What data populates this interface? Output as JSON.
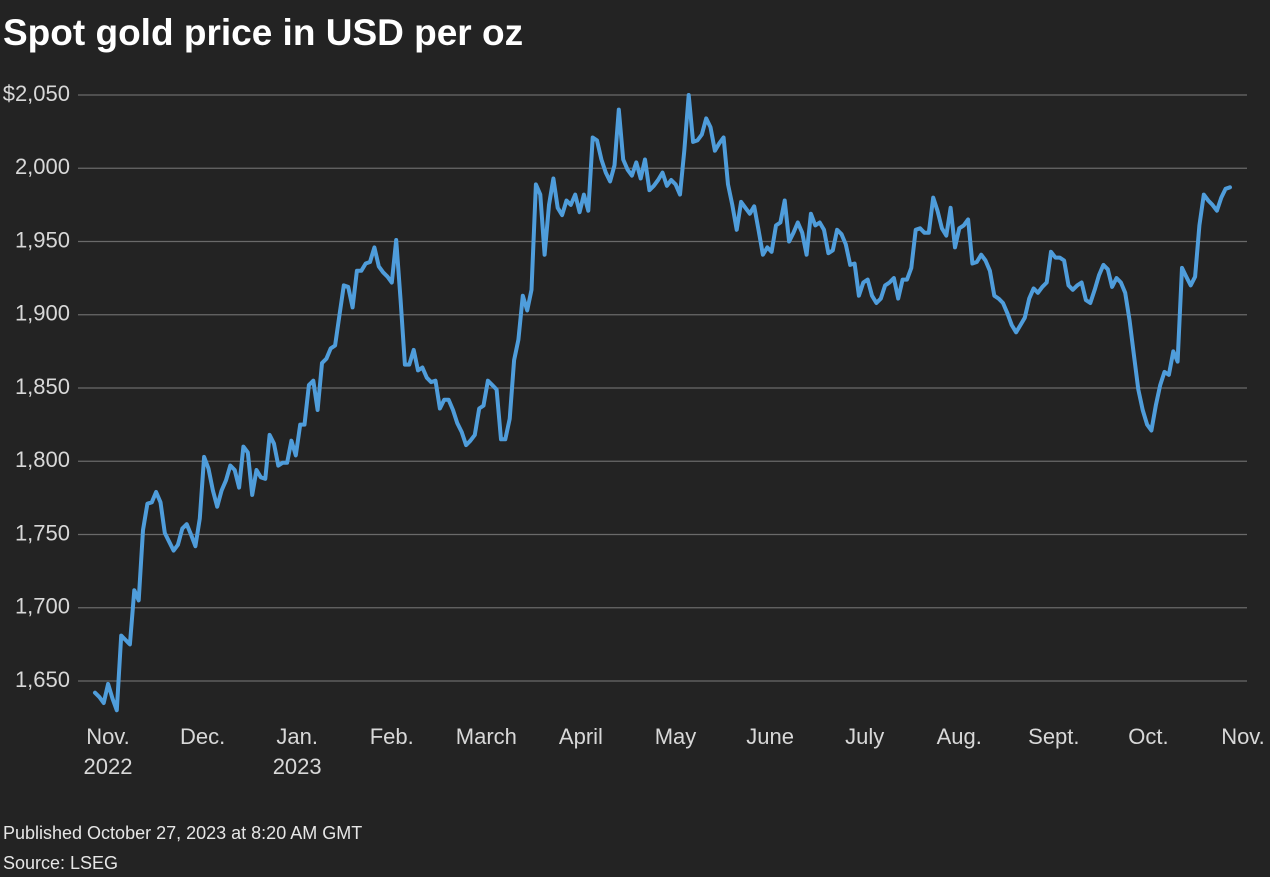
{
  "chart_data": {
    "type": "line",
    "title": "Spot gold price in USD per oz",
    "published": "Published October 27, 2023 at 8:20 AM GMT",
    "source": "Source: LSEG",
    "xticks": [
      {
        "label": "Nov.",
        "year": "2022"
      },
      {
        "label": "Dec."
      },
      {
        "label": "Jan.",
        "year": "2023"
      },
      {
        "label": "Feb."
      },
      {
        "label": "March"
      },
      {
        "label": "April"
      },
      {
        "label": "May"
      },
      {
        "label": "June"
      },
      {
        "label": "July"
      },
      {
        "label": "Aug."
      },
      {
        "label": "Sept."
      },
      {
        "label": "Oct."
      },
      {
        "label": "Nov."
      }
    ],
    "ylim": [
      1620,
      2055
    ],
    "yticks": [
      {
        "value": 1650,
        "label": "1,650"
      },
      {
        "value": 1700,
        "label": "1,700"
      },
      {
        "value": 1750,
        "label": "1,750"
      },
      {
        "value": 1800,
        "label": "1,800"
      },
      {
        "value": 1850,
        "label": "1,850"
      },
      {
        "value": 1900,
        "label": "1,900"
      },
      {
        "value": 1950,
        "label": "1,950"
      },
      {
        "value": 2000,
        "label": "2,000"
      },
      {
        "value": 2050,
        "label": "$2,050"
      }
    ],
    "grid": true,
    "series": [
      {
        "name": "Spot gold",
        "color": "#4f9ddb",
        "values": [
          1642,
          1639,
          1635,
          1648,
          1638,
          1630,
          1681,
          1678,
          1675,
          1712,
          1705,
          1753,
          1771,
          1772,
          1779,
          1772,
          1751,
          1745,
          1739,
          1743,
          1754,
          1757,
          1750,
          1742,
          1761,
          1803,
          1795,
          1780,
          1769,
          1780,
          1787,
          1797,
          1794,
          1782,
          1810,
          1806,
          1777,
          1794,
          1789,
          1788,
          1818,
          1812,
          1797,
          1799,
          1799,
          1814,
          1804,
          1825,
          1825,
          1852,
          1855,
          1835,
          1867,
          1870,
          1877,
          1879,
          1900,
          1920,
          1919,
          1905,
          1930,
          1930,
          1935,
          1936,
          1946,
          1933,
          1929,
          1926,
          1922,
          1951,
          1910,
          1866,
          1866,
          1876,
          1862,
          1864,
          1857,
          1854,
          1855,
          1836,
          1842,
          1842,
          1835,
          1826,
          1820,
          1811,
          1814,
          1818,
          1836,
          1838,
          1855,
          1852,
          1849,
          1815,
          1815,
          1829,
          1869,
          1883,
          1913,
          1903,
          1917,
          1989,
          1982,
          1941,
          1975,
          1993,
          1973,
          1968,
          1978,
          1975,
          1982,
          1970,
          1982,
          1971,
          2021,
          2019,
          2006,
          1997,
          1991,
          2002,
          2040,
          2006,
          1999,
          1995,
          2004,
          1993,
          2006,
          1985,
          1988,
          1992,
          1997,
          1988,
          1992,
          1989,
          1982,
          2012,
          2050,
          2018,
          2019,
          2023,
          2034,
          2028,
          2012,
          2017,
          2021,
          1989,
          1975,
          1958,
          1977,
          1973,
          1969,
          1974,
          1958,
          1941,
          1946,
          1943,
          1961,
          1963,
          1978,
          1950,
          1956,
          1963,
          1956,
          1941,
          1969,
          1961,
          1963,
          1958,
          1942,
          1944,
          1958,
          1955,
          1948,
          1934,
          1935,
          1913,
          1922,
          1924,
          1913,
          1908,
          1911,
          1920,
          1922,
          1925,
          1911,
          1924,
          1924,
          1932,
          1958,
          1959,
          1956,
          1956,
          1980,
          1971,
          1959,
          1954,
          1973,
          1946,
          1959,
          1961,
          1965,
          1935,
          1936,
          1941,
          1937,
          1930,
          1913,
          1911,
          1908,
          1901,
          1893,
          1888,
          1893,
          1898,
          1911,
          1918,
          1915,
          1919,
          1922,
          1943,
          1939,
          1939,
          1937,
          1920,
          1917,
          1920,
          1922,
          1910,
          1908,
          1917,
          1927,
          1934,
          1931,
          1919,
          1925,
          1922,
          1915,
          1896,
          1872,
          1849,
          1835,
          1825,
          1821,
          1838,
          1852,
          1861,
          1859,
          1875,
          1868,
          1932,
          1926,
          1920,
          1926,
          1961,
          1982,
          1978,
          1975,
          1971,
          1980,
          1986,
          1987
        ]
      }
    ]
  }
}
